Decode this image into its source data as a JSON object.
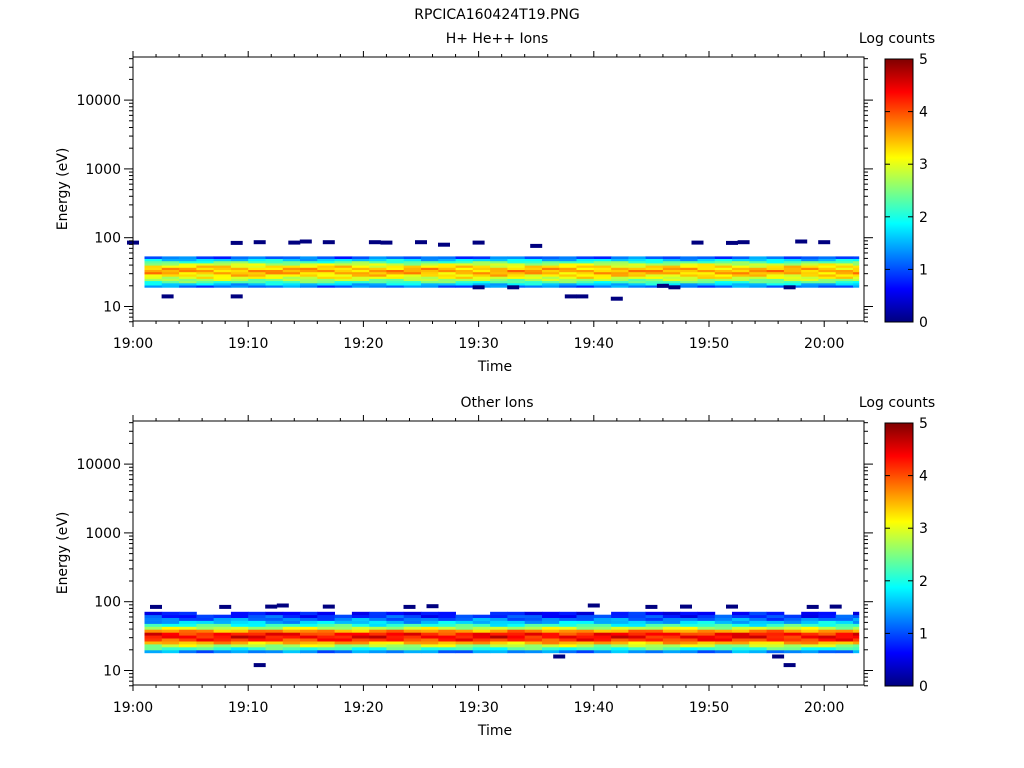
{
  "figure": {
    "filename": "RPCICA160424T19.PNG"
  },
  "panels": [
    {
      "title": "H+ He++ Ions",
      "ylabel": "Energy (eV)",
      "xlabel": "Time",
      "colorbar_label": "Log counts"
    },
    {
      "title": "Other Ions",
      "ylabel": "Energy (eV)",
      "xlabel": "Time",
      "colorbar_label": "Log counts"
    }
  ],
  "chart_data": [
    {
      "type": "heatmap",
      "title": "H+ He++ Ions",
      "xlabel": "Time",
      "ylabel": "Energy (eV)",
      "xlim": [
        "19:00",
        "20:03"
      ],
      "xticks": [
        "19:00",
        "19:10",
        "19:20",
        "19:30",
        "19:40",
        "19:50",
        "20:00"
      ],
      "ylim": [
        6,
        45000
      ],
      "yscale": "log",
      "yticks": [
        "10",
        "100",
        "1000",
        "10000"
      ],
      "colorbar": {
        "label": "Log counts",
        "range": [
          0,
          5
        ],
        "ticks": [
          "0",
          "1",
          "2",
          "3",
          "4",
          "5"
        ],
        "colormap": "jet"
      },
      "band_profile_energy_eV": [
        20,
        23,
        26,
        29,
        32,
        36,
        40,
        45,
        51
      ],
      "band_profile_log_counts": [
        1.2,
        2.3,
        3.0,
        3.3,
        3.6,
        3.4,
        3.1,
        2.2,
        1.1
      ],
      "sparse_points_energy_eV": [
        85,
        14,
        84,
        14,
        86,
        85,
        88,
        86,
        86,
        85,
        86,
        79,
        85,
        19,
        19,
        76,
        14,
        14,
        13,
        20,
        19,
        85,
        84,
        86,
        19,
        88,
        86
      ],
      "sparse_points_time": [
        "19:00",
        "19:03",
        "19:09",
        "19:09",
        "19:11",
        "19:14",
        "19:15",
        "19:17",
        "19:21",
        "19:22",
        "19:25",
        "19:27",
        "19:30",
        "19:30",
        "19:33",
        "19:35",
        "19:38",
        "19:39",
        "19:42",
        "19:46",
        "19:47",
        "19:49",
        "19:52",
        "19:53",
        "19:57",
        "19:58",
        "20:00"
      ]
    },
    {
      "type": "heatmap",
      "title": "Other Ions",
      "xlabel": "Time",
      "ylabel": "Energy (eV)",
      "xlim": [
        "19:00",
        "20:03"
      ],
      "xticks": [
        "19:00",
        "19:10",
        "19:20",
        "19:30",
        "19:40",
        "19:50",
        "20:00"
      ],
      "ylim": [
        6,
        45000
      ],
      "yscale": "log",
      "yticks": [
        "10",
        "100",
        "1000",
        "10000"
      ],
      "colorbar": {
        "label": "Log counts",
        "range": [
          0,
          5
        ],
        "ticks": [
          "0",
          "1",
          "2",
          "3",
          "4",
          "5"
        ],
        "colormap": "jet"
      },
      "band_profile_energy_eV": [
        19,
        21,
        24,
        27,
        30,
        34,
        38,
        43,
        48,
        54,
        61,
        68
      ],
      "band_profile_log_counts": [
        1.3,
        2.2,
        3.0,
        4.0,
        4.4,
        4.3,
        3.6,
        2.5,
        1.8,
        1.3,
        0.9,
        0.6
      ],
      "sparse_points_energy_eV": [
        84,
        12,
        85,
        88,
        84,
        85,
        84,
        86,
        16,
        88,
        84,
        85,
        85,
        16,
        12,
        84,
        85
      ],
      "sparse_points_time": [
        "19:02",
        "19:11",
        "19:12",
        "19:13",
        "19:08",
        "19:17",
        "19:24",
        "19:26",
        "19:37",
        "19:40",
        "19:45",
        "19:48",
        "19:52",
        "19:56",
        "19:57",
        "19:59",
        "20:01"
      ]
    }
  ]
}
